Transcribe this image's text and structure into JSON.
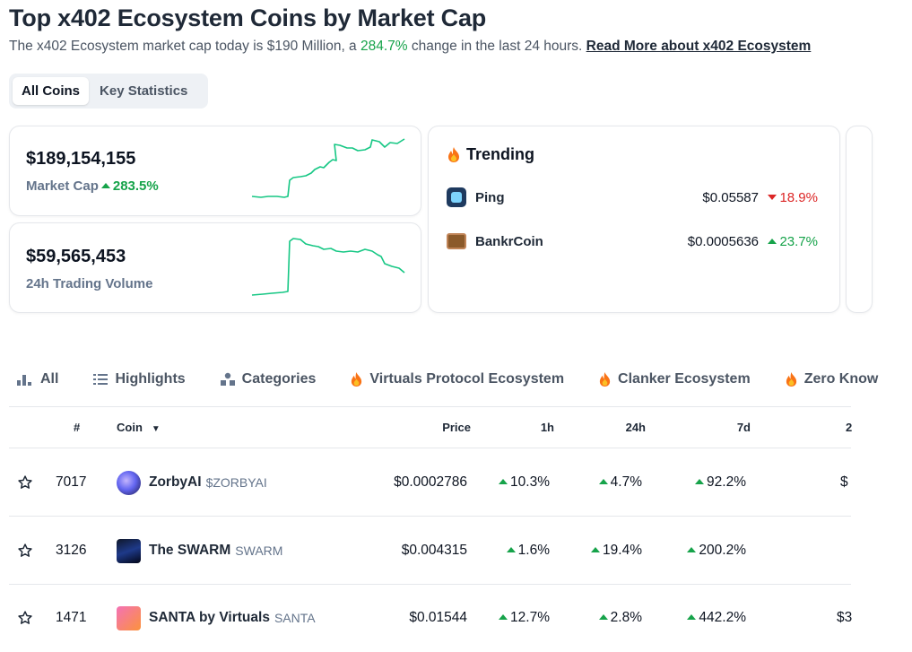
{
  "header": {
    "title": "Top x402 Ecosystem Coins by Market Cap",
    "subtitle_pre": "The x402 Ecosystem market cap today is $190 Million, a ",
    "subtitle_pct": "284.7%",
    "subtitle_post": " change in the last 24 hours. ",
    "read_more": "Read More about x402 Ecosystem"
  },
  "tabs": [
    {
      "label": "All Coins",
      "active": true
    },
    {
      "label": "Key Statistics",
      "active": false
    }
  ],
  "market_cap_card": {
    "value": "$189,154,155",
    "label": "Market Cap",
    "change": "283.5%",
    "direction": "up"
  },
  "volume_card": {
    "value": "$59,565,453",
    "label": "24h Trading Volume"
  },
  "trending": {
    "title": "Trending",
    "items": [
      {
        "name": "Ping",
        "price": "$0.05587",
        "change": "18.9%",
        "direction": "down"
      },
      {
        "name": "BankrCoin",
        "price": "$0.0005636",
        "change": "23.7%",
        "direction": "up"
      }
    ]
  },
  "filters": [
    {
      "label": "All",
      "icon": "bar-chart-icon"
    },
    {
      "label": "Highlights",
      "icon": "list-icon"
    },
    {
      "label": "Categories",
      "icon": "shapes-icon"
    },
    {
      "label": "Virtuals Protocol Ecosystem",
      "icon": "fire-icon"
    },
    {
      "label": "Clanker Ecosystem",
      "icon": "fire-icon"
    },
    {
      "label": "Zero Know",
      "icon": "fire-icon"
    }
  ],
  "table": {
    "headers": {
      "rank": "#",
      "coin": "Coin",
      "price": "Price",
      "h1": "1h",
      "h24": "24h",
      "d7": "7d",
      "extra": "2"
    },
    "rows": [
      {
        "rank": "7017",
        "name": "ZorbyAI",
        "symbol": "$ZORBYAI",
        "price": "$0.0002786",
        "h1": "10.3%",
        "h24": "4.7%",
        "d7": "92.2%",
        "extra": "$"
      },
      {
        "rank": "3126",
        "name": "The SWARM",
        "symbol": "SWARM",
        "price": "$0.004315",
        "h1": "1.6%",
        "h24": "19.4%",
        "d7": "200.2%",
        "extra": ""
      },
      {
        "rank": "1471",
        "name": "SANTA by Virtuals",
        "symbol": "SANTA",
        "price": "$0.01544",
        "h1": "12.7%",
        "h24": "2.8%",
        "d7": "442.2%",
        "extra": "$3"
      }
    ]
  },
  "colors": {
    "up": "#16a34a",
    "down": "#dc2626",
    "spark": "#16c784",
    "text": "#0d1421",
    "muted": "#64748b"
  }
}
